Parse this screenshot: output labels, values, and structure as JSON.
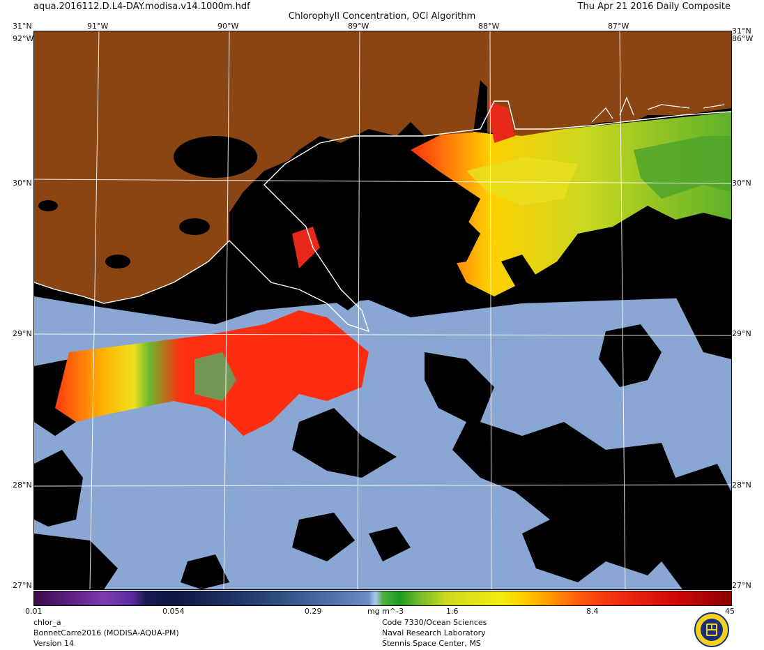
{
  "header": {
    "filename": "aqua.2016112.D.L4-DAY.modisa.v14.1000m.hdf",
    "date": "Thu Apr 21 2016 Daily Composite",
    "title": "Chlorophyll Concentration, OCI Algorithm"
  },
  "longitude_labels": [
    "91°W",
    "90°W",
    "89°W",
    "88°W",
    "87°W"
  ],
  "latitude_labels": [
    "30°N",
    "29°N",
    "28°N"
  ],
  "corner_labels": {
    "top_left": "31°N",
    "top_right": "31°N",
    "left_w": "92°W",
    "right_w": "86°W",
    "bottom_left_n": "27°N",
    "bottom_right_n": "27°N"
  },
  "colorbar": {
    "ticks": [
      "0.01",
      "0.054",
      "0.29",
      "1.6",
      "8.4",
      "45"
    ],
    "units": "mg m^-3",
    "colors": [
      "#3b0a4a",
      "#7b3bb0",
      "#0d1640",
      "#4a6ea5",
      "#a9c8f0",
      "#1d9a20",
      "#c8d81f",
      "#f4ec10",
      "#ff9a00",
      "#f02a10",
      "#8a0000"
    ]
  },
  "footer": {
    "product": "chlor_a",
    "dataset": "BonnetCarre2016 (MODISA-AQUA-PM)",
    "version": "Version 14",
    "org_line1": "Code 7330/Ocean Sciences",
    "org_line2": "Naval Research Laboratory",
    "org_line3": "Stennis Space Center, MS"
  },
  "colors": {
    "land": "#8b4513",
    "no_data": "#000000",
    "ocean_low": "#8aa6d2",
    "coastline": "#ffffff",
    "graticule": "#ffffff"
  }
}
